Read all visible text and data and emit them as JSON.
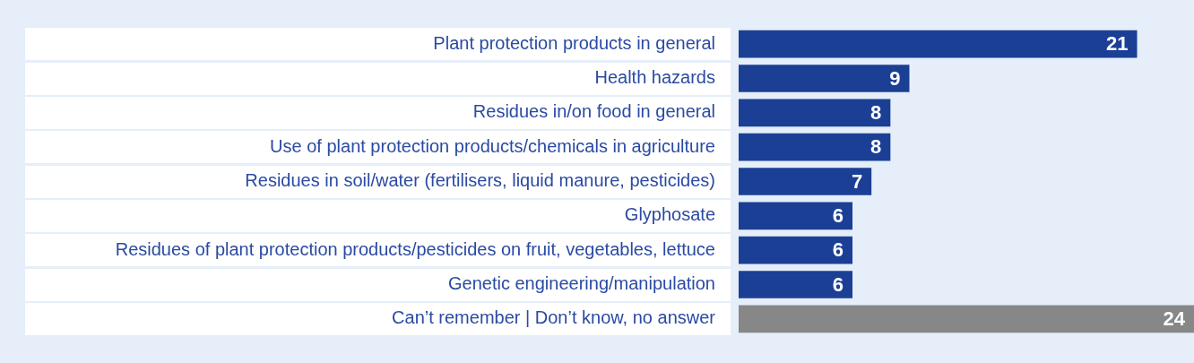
{
  "chart_data": {
    "type": "bar",
    "orientation": "horizontal",
    "categories": [
      "Plant protection products in general",
      "Health hazards",
      "Residues in/on food in general",
      "Use of plant protection products/chemicals in agriculture",
      "Residues in soil/water (fertilisers, liquid manure, pesticides)",
      "Glyphosate",
      "Residues of plant protection products/pesticides on fruit, vegetables, lettuce",
      "Genetic engineering/manipulation",
      "Can’t remember | Don’t know, no answer"
    ],
    "values": [
      21,
      9,
      8,
      8,
      7,
      6,
      6,
      6,
      24
    ],
    "colors": [
      "#1b3f95",
      "#1b3f95",
      "#1b3f95",
      "#1b3f95",
      "#1b3f95",
      "#1b3f95",
      "#1b3f95",
      "#1b3f95",
      "#878787"
    ],
    "xlim": [
      0,
      24
    ],
    "tick_labels": "y",
    "data_labels": true
  }
}
